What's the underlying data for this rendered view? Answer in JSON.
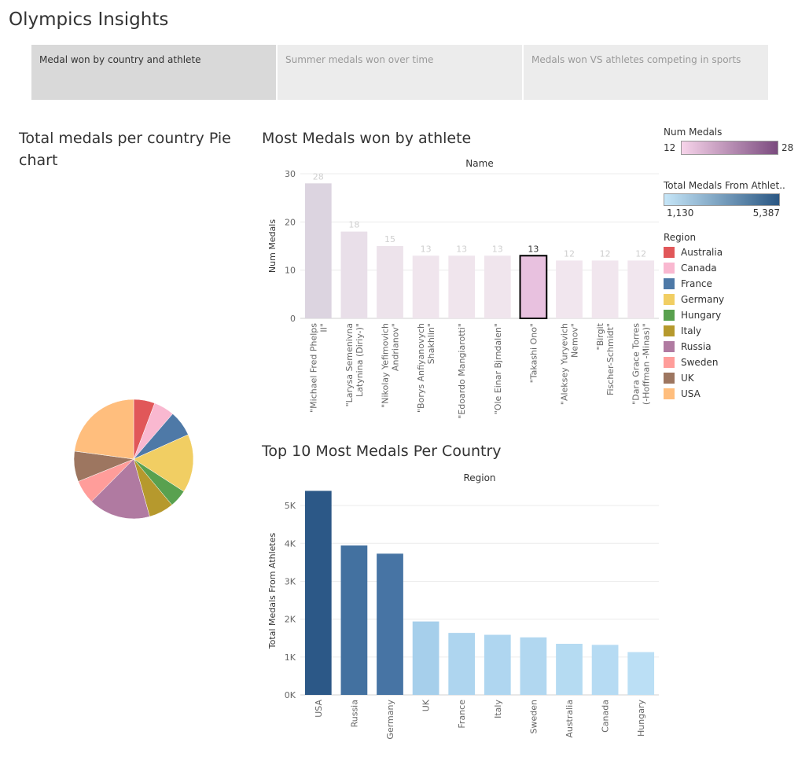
{
  "dashboard": {
    "title": "Olympics Insights"
  },
  "tabs": [
    {
      "label": "Medal won by country and athlete",
      "active": true
    },
    {
      "label": "Summer medals won over time",
      "active": false
    },
    {
      "label": "Medals won VS athletes competing in sports",
      "active": false
    }
  ],
  "sections": {
    "pie_title": "Total medals per country Pie chart",
    "athlete_title": "Most Medals won by athlete",
    "country_title": "Top 10 Most Medals Per Country"
  },
  "colors": {
    "Australia": "#e15759",
    "Canada": "#f9b8d0",
    "France": "#4e79a7",
    "Germany": "#f1ce63",
    "Hungary": "#59a14f",
    "Italy": "#b6992d",
    "Russia": "#b07aa1",
    "Sweden": "#ff9d9a",
    "UK": "#9d7660",
    "USA": "#ffbe7d"
  },
  "legends": {
    "num_medals": {
      "title": "Num Medals",
      "min": "12",
      "max": "28",
      "color_low": "#f7d4ea",
      "color_high": "#7b4b7f"
    },
    "total_medals": {
      "title": "Total Medals From Athlet..",
      "min": "1,130",
      "max": "5,387",
      "color_low": "#c6e6f8",
      "color_high": "#2a5783"
    },
    "region": {
      "title": "Region",
      "items": [
        "Australia",
        "Canada",
        "France",
        "Germany",
        "Hungary",
        "Italy",
        "Russia",
        "Sweden",
        "UK",
        "USA"
      ]
    }
  },
  "chart_data": [
    {
      "type": "pie",
      "title": "Total medals per country Pie chart",
      "categories": [
        "Australia",
        "Canada",
        "France",
        "Germany",
        "Hungary",
        "Italy",
        "Russia",
        "Sweden",
        "UK",
        "USA"
      ],
      "values": [
        1349,
        1321,
        1637,
        3729,
        1130,
        1587,
        3947,
        1519,
        1939,
        5387
      ]
    },
    {
      "type": "bar",
      "title": "Most Medals won by athlete",
      "xlabel": "Name",
      "ylabel": "Num Medals",
      "ylim": [
        0,
        30
      ],
      "yticks": [
        0,
        10,
        20,
        30
      ],
      "highlighted": "\"Takashi Ono\"",
      "categories": [
        "\"Michael Fred Phelps II\"",
        "\"Larysa Semenivna Latynina (Diriy-)\"",
        "\"Nikolay Yefimovich Andrianov\"",
        "\"Borys Anfiyanovych Shakhlin\"",
        "\"Edoardo Mangiarotti\"",
        "\"Ole Einar Bjrndalen\"",
        "\"Takashi Ono\"",
        "\"Aleksey Yuryevich Nemov\"",
        "\"Birgit Fischer-Schmidt\"",
        "\"Dara Grace Torres (-Hoffman -Minas)\""
      ],
      "label_lines": [
        [
          "\"Michael Fred Phelps",
          "II\""
        ],
        [
          "\"Larysa Semenivna",
          "Latynina (Diriy-)\""
        ],
        [
          "\"Nikolay Yefimovich",
          "Andrianov\""
        ],
        [
          "\"Borys Anfiyanovych",
          "Shakhlin\""
        ],
        [
          "\"Edoardo Mangiarotti\""
        ],
        [
          "\"Ole Einar Bjrndalen\""
        ],
        [
          "\"Takashi Ono\""
        ],
        [
          "\"Aleksey Yuryevich",
          "Nemov\""
        ],
        [
          "\"Birgit",
          "Fischer-Schmidt\""
        ],
        [
          "\"Dara Grace Torres",
          "(-Hoffman -Minas)\""
        ]
      ],
      "values": [
        28,
        18,
        15,
        13,
        13,
        13,
        13,
        12,
        12,
        12
      ]
    },
    {
      "type": "bar",
      "title": "Top 10 Most Medals Per Country",
      "xlabel": "Region",
      "ylabel": "Total Medals From Athletes",
      "ylim": [
        0,
        5500
      ],
      "yticks": [
        0,
        1000,
        2000,
        3000,
        4000,
        5000
      ],
      "ytick_labels": [
        "0K",
        "1K",
        "2K",
        "3K",
        "4K",
        "5K"
      ],
      "categories": [
        "USA",
        "Russia",
        "Germany",
        "UK",
        "France",
        "Italy",
        "Sweden",
        "Australia",
        "Canada",
        "Hungary"
      ],
      "values": [
        5387,
        3947,
        3729,
        1939,
        1637,
        1587,
        1519,
        1349,
        1321,
        1130
      ]
    }
  ]
}
